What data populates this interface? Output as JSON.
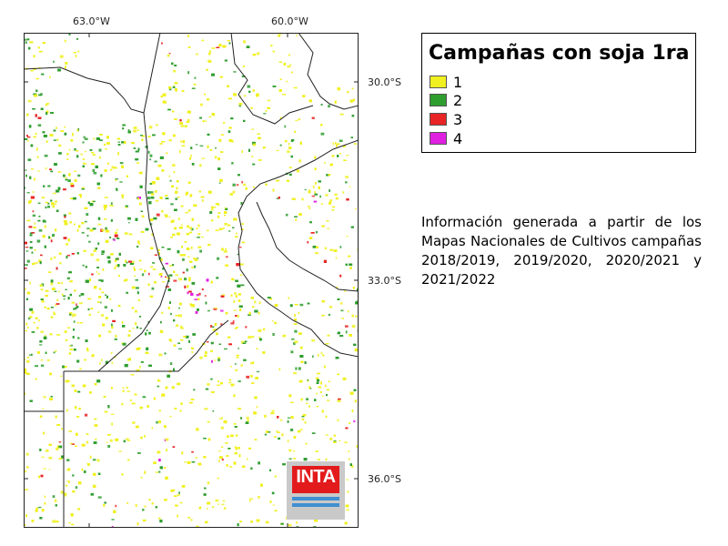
{
  "map": {
    "axis_labels": {
      "top": [
        "63.0°W",
        "60.0°W"
      ],
      "right": [
        "30.0°S",
        "33.0°S",
        "36.0°S"
      ]
    },
    "colors": {
      "class_1": "#f0f020",
      "class_2": "#2e9e2e",
      "class_3": "#e82424",
      "class_4": "#e020e0"
    }
  },
  "legend": {
    "title": "Campañas con soja 1ra",
    "items": [
      {
        "label": "1",
        "color": "#f0f020"
      },
      {
        "label": "2",
        "color": "#2e9e2e"
      },
      {
        "label": "3",
        "color": "#e82424"
      },
      {
        "label": "4",
        "color": "#e020e0"
      }
    ]
  },
  "info": {
    "text": "Información generada a partir de los Mapas Nacionales de Cultivos campañas 2018/2019, 2019/2020, 2020/2021 y 2021/2022"
  },
  "logo": {
    "text": "INTA"
  }
}
